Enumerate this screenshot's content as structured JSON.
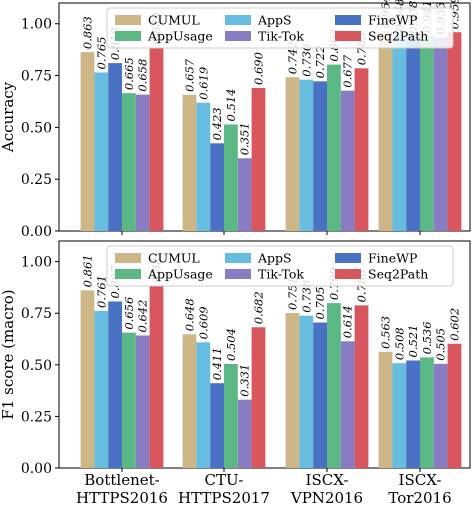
{
  "chart_data": [
    {
      "type": "bar",
      "ylabel": "Accuracy",
      "ylim": [
        0,
        1.1
      ],
      "yticks": [
        "0.00",
        "0.25",
        "0.50",
        "0.75",
        "1.00"
      ],
      "categories": [
        "Bottlenet-HTTPS2016",
        "CTU-HTTPS2017",
        "ISCX-VPN2016",
        "ISCX-Tor2016"
      ],
      "legend_position": "top",
      "series": [
        {
          "name": "CUMUL",
          "color": "#cdb787",
          "values": [
            0.863,
            0.657,
            0.742,
            0.964
          ],
          "labels": [
            "0.863",
            "0.657",
            "0.742",
            "0.964"
          ]
        },
        {
          "name": "AppS",
          "color": "#67bde0",
          "values": [
            0.765,
            0.619,
            0.73,
            0.948
          ],
          "labels": [
            "0.765",
            "0.619",
            "0.730",
            "0.948"
          ]
        },
        {
          "name": "FineWP",
          "color": "#4a72c4",
          "values": [
            0.81,
            0.423,
            0.722,
            0.938
          ],
          "labels": [
            "0.810",
            "0.423",
            "0.722",
            "0.938"
          ]
        },
        {
          "name": "AppUsage",
          "color": "#5bb884",
          "values": [
            0.665,
            0.514,
            0.803,
            0.941
          ],
          "labels": [
            "0.665",
            "0.514",
            "0.803",
            "0.941"
          ]
        },
        {
          "name": "Tik-Tok",
          "color": "#8a7cc3",
          "values": [
            0.658,
            0.351,
            0.677,
            0.933
          ],
          "labels": [
            "0.658",
            "0.351",
            "0.677",
            "0.933"
          ]
        },
        {
          "name": "Seq2Path",
          "color": "#d8575e",
          "values": [
            0.883,
            0.69,
            0.785,
            0.959
          ],
          "labels": [
            "0.883",
            "0.690",
            "0.785",
            "0.959"
          ]
        }
      ]
    },
    {
      "type": "bar",
      "ylabel": "F1 score (macro)",
      "ylim": [
        0,
        1.1
      ],
      "yticks": [
        "0.00",
        "0.25",
        "0.50",
        "0.75",
        "1.00"
      ],
      "categories": [
        "Bottlenet-HTTPS2016",
        "CTU-HTTPS2017",
        "ISCX-VPN2016",
        "ISCX-Tor2016"
      ],
      "category_lines": [
        [
          "Bottlenet-",
          "HTTPS2016"
        ],
        [
          "CTU-",
          "HTTPS2017"
        ],
        [
          "ISCX-",
          "VPN2016"
        ],
        [
          "ISCX-",
          "Tor2016"
        ]
      ],
      "legend_position": "top",
      "series": [
        {
          "name": "CUMUL",
          "color": "#cdb787",
          "values": [
            0.861,
            0.648,
            0.751,
            0.563
          ],
          "labels": [
            "0.861",
            "0.648",
            "0.751",
            "0.563"
          ]
        },
        {
          "name": "AppS",
          "color": "#67bde0",
          "values": [
            0.761,
            0.609,
            0.738,
            0.508
          ],
          "labels": [
            "0.761",
            "0.609",
            "0.738",
            "0.508"
          ]
        },
        {
          "name": "FineWP",
          "color": "#4a72c4",
          "values": [
            0.807,
            0.411,
            0.705,
            0.521
          ],
          "labels": [
            "0.807",
            "0.411",
            "0.705",
            "0.521"
          ]
        },
        {
          "name": "AppUsage",
          "color": "#5bb884",
          "values": [
            0.656,
            0.504,
            0.799,
            0.536
          ],
          "labels": [
            "0.656",
            "0.504",
            "0.799",
            "0.536"
          ]
        },
        {
          "name": "Tik-Tok",
          "color": "#8a7cc3",
          "values": [
            0.642,
            0.331,
            0.614,
            0.505
          ],
          "labels": [
            "0.642",
            "0.331",
            "0.614",
            "0.505"
          ]
        },
        {
          "name": "Seq2Path",
          "color": "#d8575e",
          "values": [
            0.881,
            0.682,
            0.788,
            0.602
          ],
          "labels": [
            "0.881",
            "0.682",
            "0.788",
            "0.602"
          ]
        }
      ]
    }
  ]
}
